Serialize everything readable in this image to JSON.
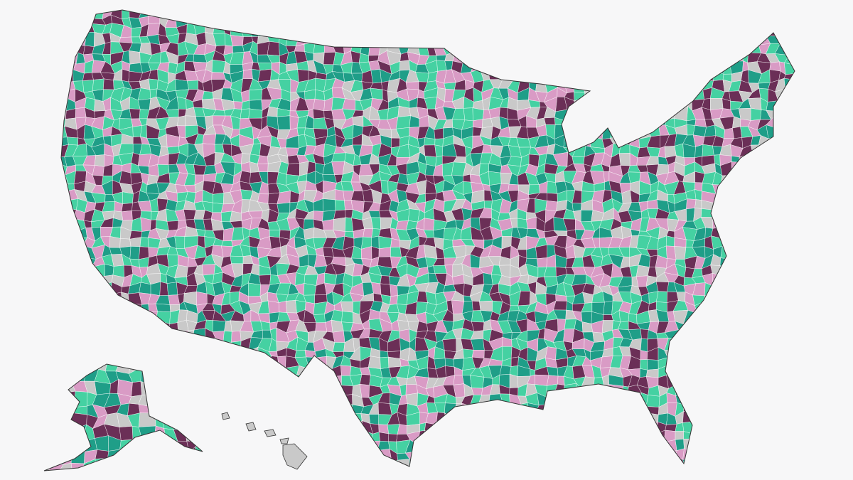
{
  "map": {
    "palette": [
      "#6b2f57",
      "#d99bc5",
      "#45d1a2",
      "#1f9e88",
      "#c9c9c9"
    ]
  }
}
